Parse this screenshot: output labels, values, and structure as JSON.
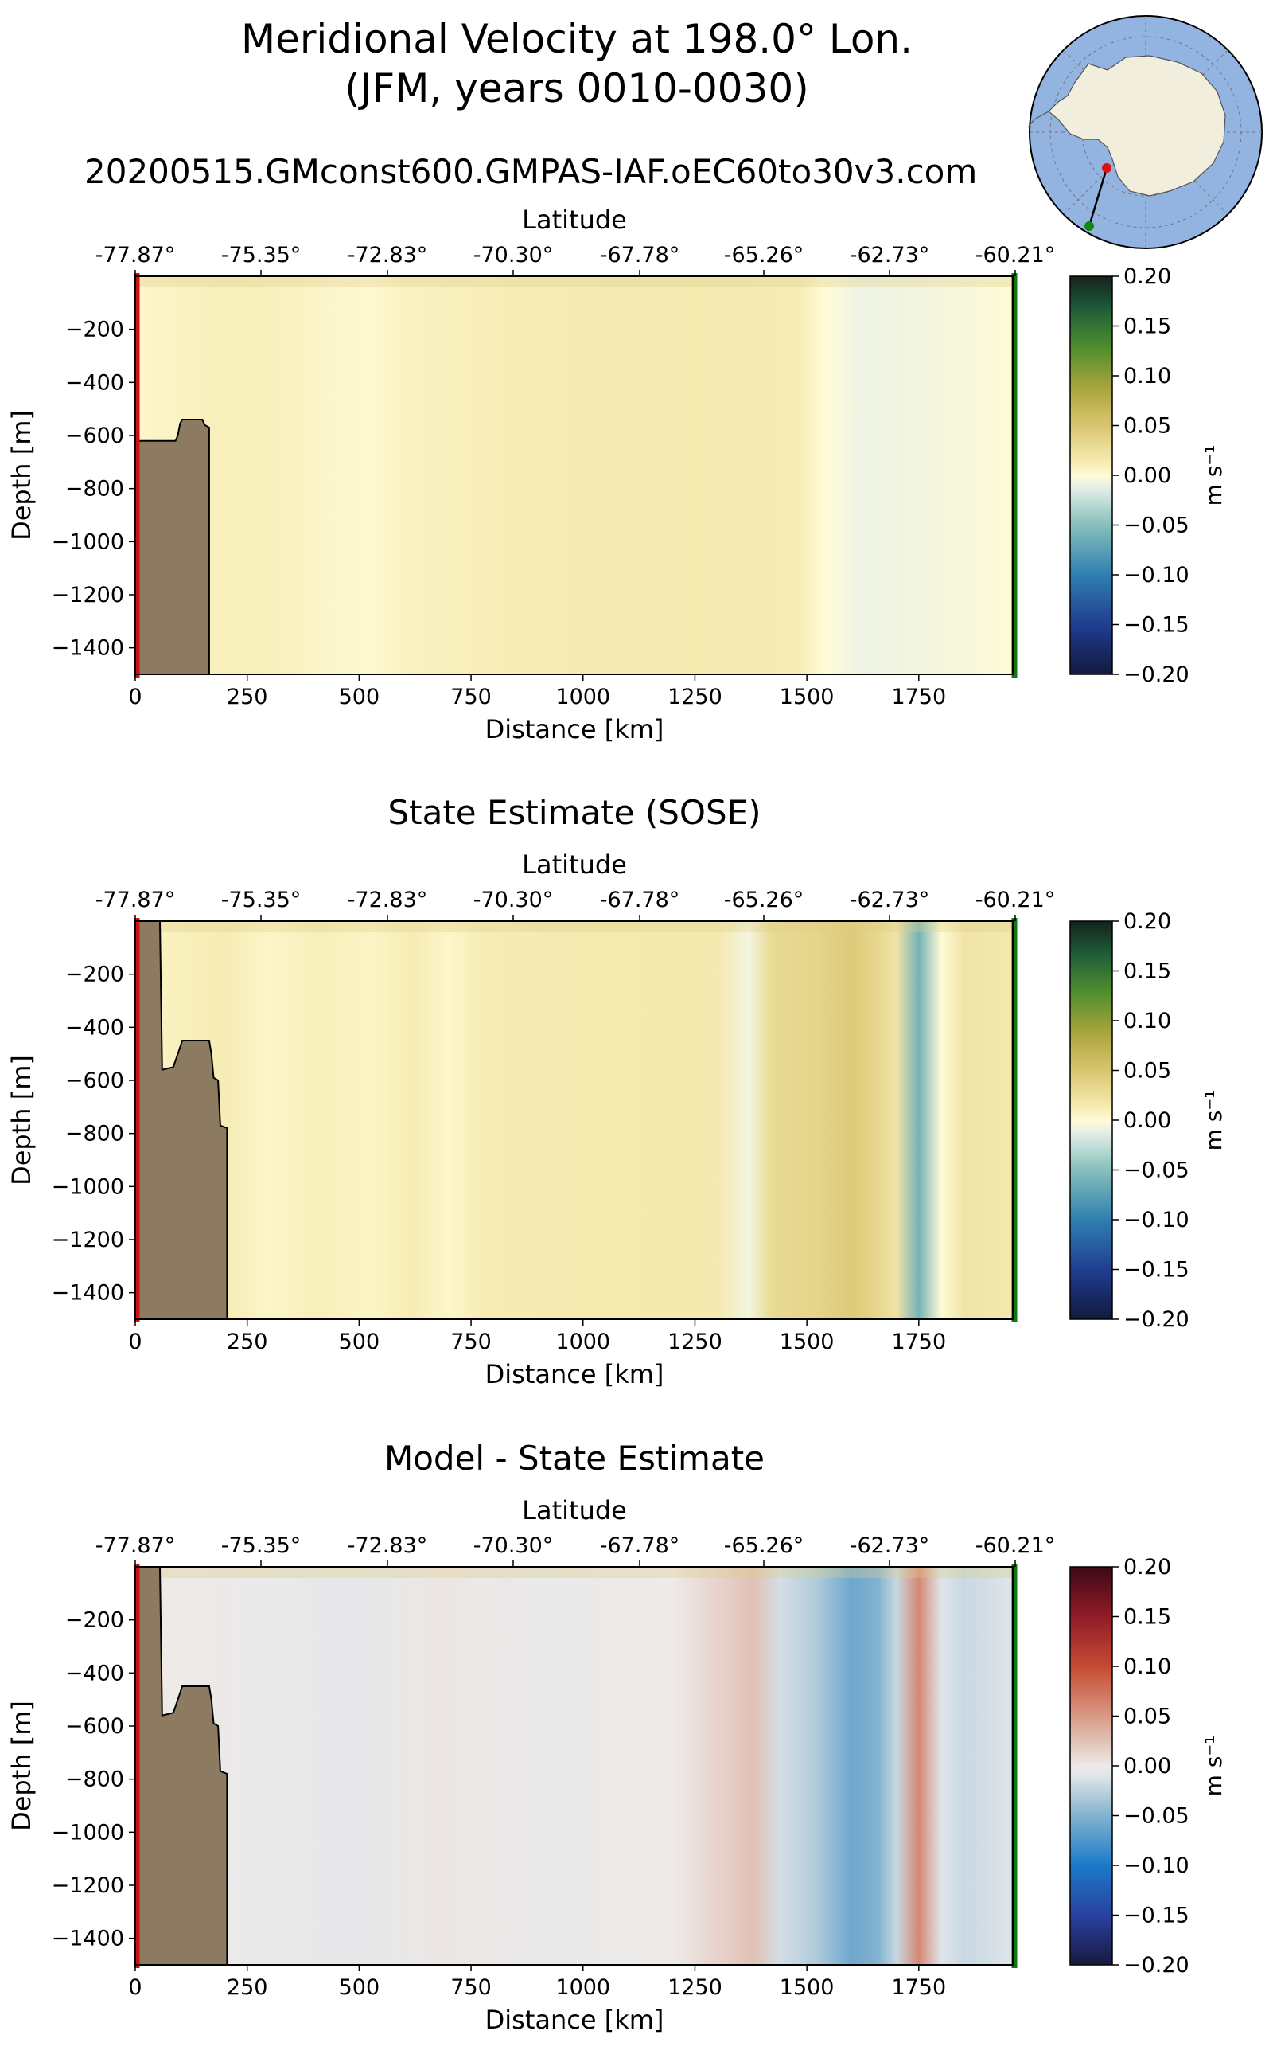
{
  "figure": {
    "title_line1": "Meridional Velocity at 198.0° Lon.",
    "title_line2": "(JFM, years 0010-0030)",
    "run_name": "20200515.GMconst600.GMPAS-IAF.oEC60to30v3.com"
  },
  "colors": {
    "land": "#8c7b60",
    "start_marker": "#cc1111",
    "end_marker": "#117711",
    "inset_ocean": "#93b3e0",
    "inset_land": "#f1eedd"
  },
  "chart_data": [
    {
      "type": "heatmap",
      "title": "",
      "xlabel": "Distance [km]",
      "ylabel": "Depth [m]",
      "top_xlabel": "Latitude",
      "xlim": [
        0,
        1960
      ],
      "ylim": [
        -1500,
        0
      ],
      "xticks": [
        "0",
        "250",
        "500",
        "750",
        "1000",
        "1250",
        "1500",
        "1750"
      ],
      "yticks": [
        "−200",
        "−400",
        "−600",
        "−800",
        "−1000",
        "−1200",
        "−1400"
      ],
      "lat_ticks": [
        "-77.87°",
        "-75.35°",
        "-72.83°",
        "-70.30°",
        "-67.78°",
        "-65.26°",
        "-62.73°",
        "-60.21°"
      ],
      "colorbar": {
        "label": "m s⁻¹",
        "ticks": [
          "0.20",
          "0.15",
          "0.10",
          "0.05",
          "0.00",
          "−0.05",
          "−0.10",
          "−0.15",
          "−0.20"
        ],
        "cmap": "delta"
      },
      "velocity_profile_km": [
        [
          0,
          0.004
        ],
        [
          200,
          0.01
        ],
        [
          350,
          0.008
        ],
        [
          450,
          0.003
        ],
        [
          520,
          0.002
        ],
        [
          620,
          0.008
        ],
        [
          900,
          0.012
        ],
        [
          1250,
          0.014
        ],
        [
          1480,
          0.012
        ],
        [
          1540,
          0.0
        ],
        [
          1620,
          -0.008
        ],
        [
          1750,
          -0.006
        ],
        [
          1900,
          -0.002
        ],
        [
          1960,
          0.0
        ]
      ],
      "topography_km_m": [
        [
          0,
          0
        ],
        [
          0,
          -1500
        ],
        [
          165,
          -1500
        ],
        [
          165,
          -570
        ],
        [
          155,
          -560
        ],
        [
          150,
          -540
        ],
        [
          105,
          -540
        ],
        [
          100,
          -555
        ],
        [
          95,
          -600
        ],
        [
          90,
          -620
        ],
        [
          0,
          -620
        ]
      ]
    },
    {
      "type": "heatmap",
      "title": "State Estimate (SOSE)",
      "xlabel": "Distance [km]",
      "ylabel": "Depth [m]",
      "top_xlabel": "Latitude",
      "xlim": [
        0,
        1960
      ],
      "ylim": [
        -1500,
        0
      ],
      "xticks": [
        "0",
        "250",
        "500",
        "750",
        "1000",
        "1250",
        "1500",
        "1750"
      ],
      "yticks": [
        "−200",
        "−400",
        "−600",
        "−800",
        "−1000",
        "−1200",
        "−1400"
      ],
      "lat_ticks": [
        "-77.87°",
        "-75.35°",
        "-72.83°",
        "-70.30°",
        "-67.78°",
        "-65.26°",
        "-62.73°",
        "-60.21°"
      ],
      "colorbar": {
        "label": "m s⁻¹",
        "ticks": [
          "0.20",
          "0.15",
          "0.10",
          "0.05",
          "0.00",
          "−0.05",
          "−0.10",
          "−0.15",
          "−0.20"
        ],
        "cmap": "delta"
      },
      "velocity_profile_km": [
        [
          0,
          0.006
        ],
        [
          200,
          0.012
        ],
        [
          300,
          0.005
        ],
        [
          400,
          0.01
        ],
        [
          530,
          0.006
        ],
        [
          620,
          0.012
        ],
        [
          700,
          0.004
        ],
        [
          780,
          0.012
        ],
        [
          1000,
          0.014
        ],
        [
          1300,
          0.015
        ],
        [
          1370,
          -0.006
        ],
        [
          1420,
          0.03
        ],
        [
          1520,
          0.035
        ],
        [
          1600,
          0.045
        ],
        [
          1660,
          0.032
        ],
        [
          1700,
          0.02
        ],
        [
          1750,
          -0.06
        ],
        [
          1800,
          0.0
        ],
        [
          1850,
          0.02
        ],
        [
          1960,
          0.015
        ]
      ],
      "topography_km_m": [
        [
          0,
          0
        ],
        [
          0,
          -1500
        ],
        [
          205,
          -1500
        ],
        [
          205,
          -780
        ],
        [
          190,
          -770
        ],
        [
          185,
          -600
        ],
        [
          175,
          -590
        ],
        [
          170,
          -500
        ],
        [
          165,
          -450
        ],
        [
          105,
          -450
        ],
        [
          95,
          -500
        ],
        [
          85,
          -550
        ],
        [
          60,
          -560
        ],
        [
          55,
          0
        ]
      ]
    },
    {
      "type": "heatmap",
      "title": "Model - State Estimate",
      "xlabel": "Distance [km]",
      "ylabel": "Depth [m]",
      "top_xlabel": "Latitude",
      "xlim": [
        0,
        1960
      ],
      "ylim": [
        -1500,
        0
      ],
      "xticks": [
        "0",
        "250",
        "500",
        "750",
        "1000",
        "1250",
        "1500",
        "1750"
      ],
      "yticks": [
        "−200",
        "−400",
        "−600",
        "−800",
        "−1000",
        "−1200",
        "−1400"
      ],
      "lat_ticks": [
        "-77.87°",
        "-75.35°",
        "-72.83°",
        "-70.30°",
        "-67.78°",
        "-65.26°",
        "-62.73°",
        "-60.21°"
      ],
      "colorbar": {
        "label": "m s⁻¹",
        "ticks": [
          "0.20",
          "0.15",
          "0.10",
          "0.05",
          "0.00",
          "−0.05",
          "−0.10",
          "−0.15",
          "−0.20"
        ],
        "cmap": "balance"
      },
      "velocity_profile_km": [
        [
          0,
          0.0
        ],
        [
          300,
          -0.003
        ],
        [
          500,
          -0.006
        ],
        [
          700,
          0.002
        ],
        [
          900,
          -0.004
        ],
        [
          1200,
          0.0
        ],
        [
          1380,
          0.025
        ],
        [
          1440,
          -0.015
        ],
        [
          1520,
          -0.03
        ],
        [
          1600,
          -0.06
        ],
        [
          1660,
          -0.05
        ],
        [
          1700,
          -0.02
        ],
        [
          1750,
          0.06
        ],
        [
          1800,
          -0.01
        ],
        [
          1850,
          -0.02
        ],
        [
          1960,
          -0.01
        ]
      ],
      "topography_km_m": [
        [
          0,
          0
        ],
        [
          0,
          -1500
        ],
        [
          205,
          -1500
        ],
        [
          205,
          -780
        ],
        [
          190,
          -770
        ],
        [
          185,
          -600
        ],
        [
          175,
          -590
        ],
        [
          170,
          -500
        ],
        [
          165,
          -450
        ],
        [
          105,
          -450
        ],
        [
          95,
          -500
        ],
        [
          85,
          -550
        ],
        [
          60,
          -560
        ],
        [
          55,
          0
        ]
      ]
    }
  ]
}
